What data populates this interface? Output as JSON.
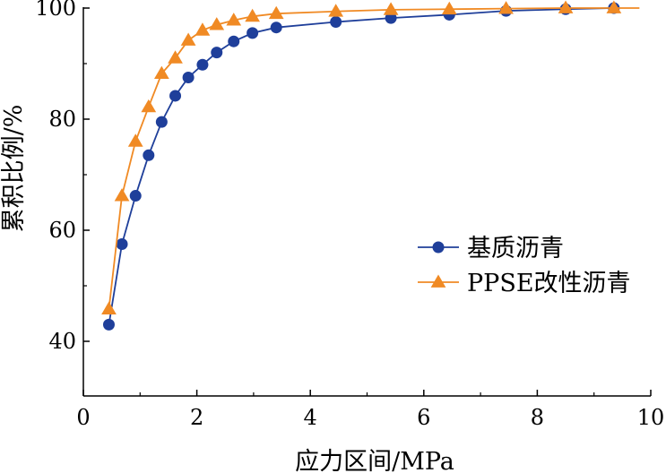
{
  "chart_data": {
    "type": "line",
    "xlabel": "应力区间/MPa",
    "ylabel": "累积比例/%",
    "xlim": [
      0,
      10
    ],
    "ylim": [
      35,
      100
    ],
    "x_ticks": [
      0,
      2,
      4,
      6,
      8,
      10
    ],
    "y_ticks": [
      40,
      60,
      80,
      100
    ],
    "grid": false,
    "legend_position": "center-right",
    "series": [
      {
        "name": "基质沥青",
        "color": "#1f3f9a",
        "marker": "circle",
        "x": [
          0.45,
          0.68,
          0.92,
          1.15,
          1.38,
          1.62,
          1.85,
          2.1,
          2.35,
          2.65,
          2.98,
          3.4,
          4.45,
          5.42,
          6.45,
          7.45,
          8.5,
          9.35
        ],
        "y": [
          43.0,
          57.5,
          66.2,
          73.5,
          79.5,
          84.2,
          87.5,
          89.8,
          92.0,
          94.0,
          95.5,
          96.5,
          97.5,
          98.2,
          98.8,
          99.5,
          99.8,
          100.0
        ]
      },
      {
        "name": "PPSE改性沥青",
        "color": "#f08a24",
        "marker": "triangle",
        "x": [
          0.45,
          0.68,
          0.92,
          1.15,
          1.38,
          1.62,
          1.85,
          2.1,
          2.35,
          2.65,
          2.98,
          3.4,
          4.45,
          5.42,
          6.45,
          7.45,
          8.5,
          9.35
        ],
        "y": [
          45.8,
          66.2,
          76.0,
          82.2,
          88.2,
          91.0,
          94.2,
          96.0,
          97.0,
          97.8,
          98.5,
          99.0,
          99.4,
          99.7,
          99.8,
          99.9,
          100.0,
          100.0
        ],
        "end_x": 9.8,
        "end_y": 100.0
      }
    ]
  }
}
